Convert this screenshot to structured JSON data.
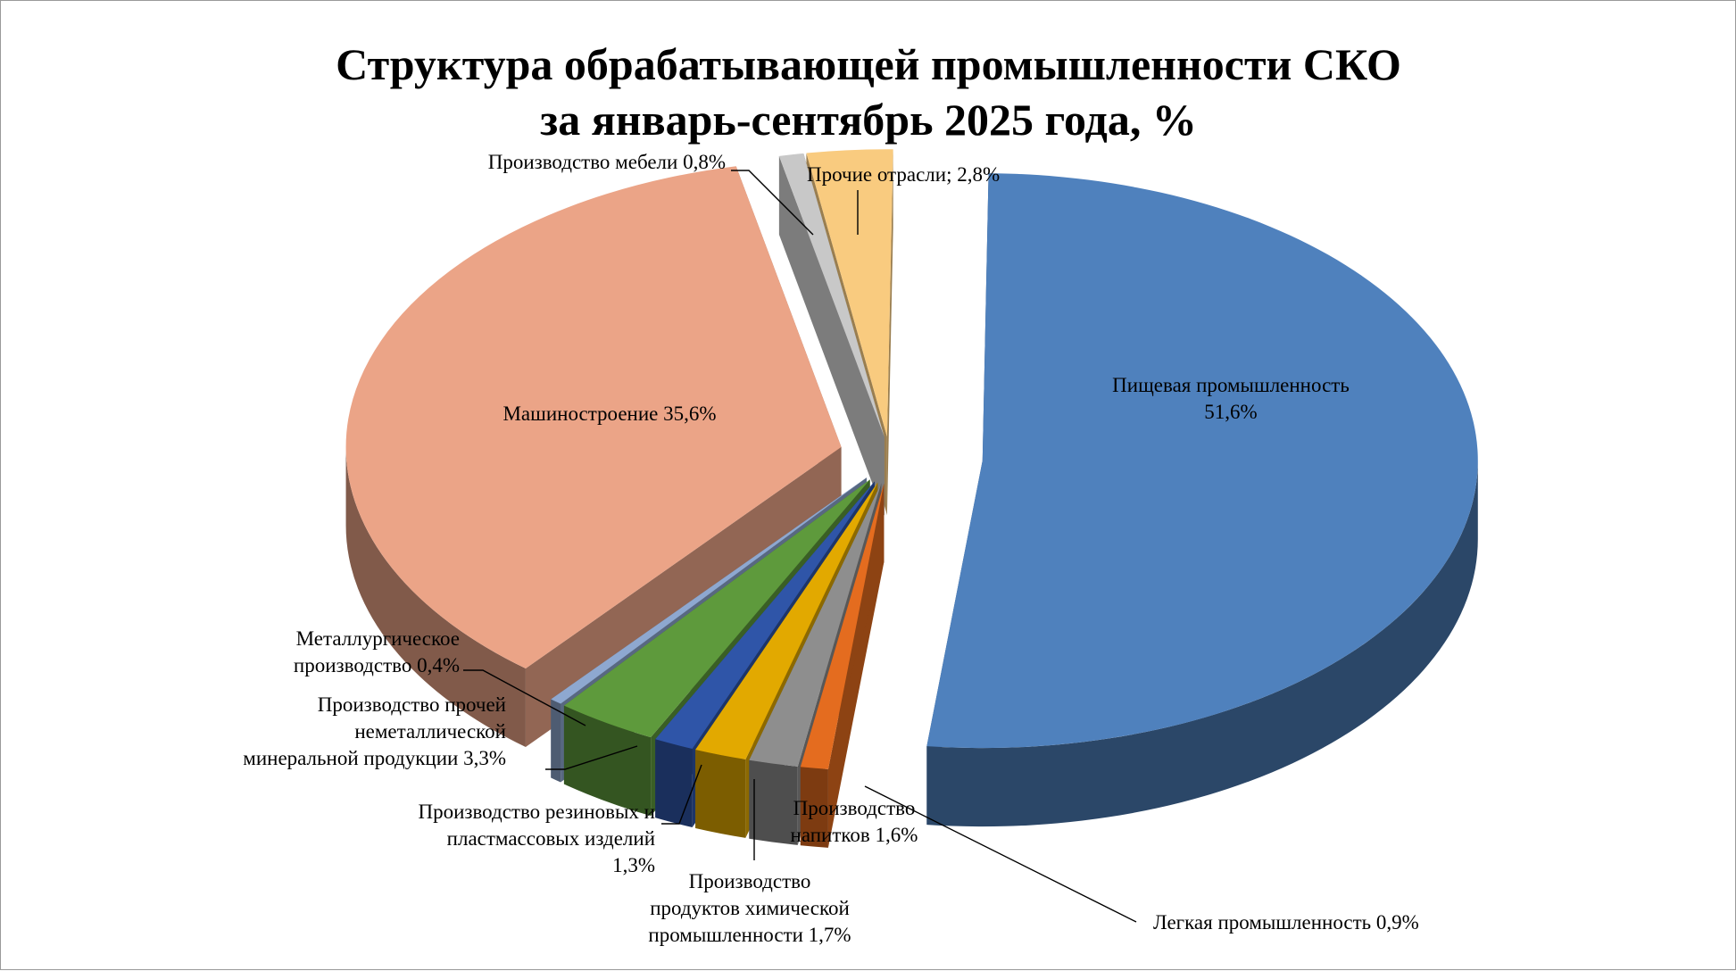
{
  "chart_data": {
    "type": "pie",
    "title_lines": [
      "Структура обрабатывающей промышленности СКО",
      "за январь-сентябрь 2025 года, %"
    ],
    "slices": [
      {
        "label_lines": [
          "Пищевая промышленность",
          "51,6%"
        ],
        "value": 51.6,
        "color": "#4F81BD"
      },
      {
        "label_lines": [
          "Легкая промышленность 0,9%"
        ],
        "value": 0.9,
        "color": "#E46C1F"
      },
      {
        "label_lines": [
          "Производство",
          "напитков 1,6%"
        ],
        "value": 1.6,
        "color": "#8E8E8E"
      },
      {
        "label_lines": [
          "Производство",
          "продуктов химической",
          "промышленности 1,7%"
        ],
        "value": 1.7,
        "color": "#E2A900"
      },
      {
        "label_lines": [
          "Производство резиновых и",
          "пластмассовых изделий",
          "1,3%"
        ],
        "value": 1.3,
        "color": "#2F55A8"
      },
      {
        "label_lines": [
          "Производство прочей",
          "неметаллической",
          "минеральной продукции 3,3%"
        ],
        "value": 3.3,
        "color": "#5E9A3C"
      },
      {
        "label_lines": [
          "Металлургическое",
          "производство 0,4%"
        ],
        "value": 0.4,
        "color": "#8EA8D0"
      },
      {
        "label_lines": [
          "Машиностроение 35,6%"
        ],
        "value": 35.6,
        "color": "#EBA487"
      },
      {
        "label_lines": [
          "Производство мебели 0,8%"
        ],
        "value": 0.8,
        "color": "#C8C8C8"
      },
      {
        "label_lines": [
          "Прочие отрасли; 2,8%"
        ],
        "value": 2.8,
        "color": "#F9CB7F"
      }
    ],
    "legend": "none",
    "style": "3d-exploded"
  }
}
